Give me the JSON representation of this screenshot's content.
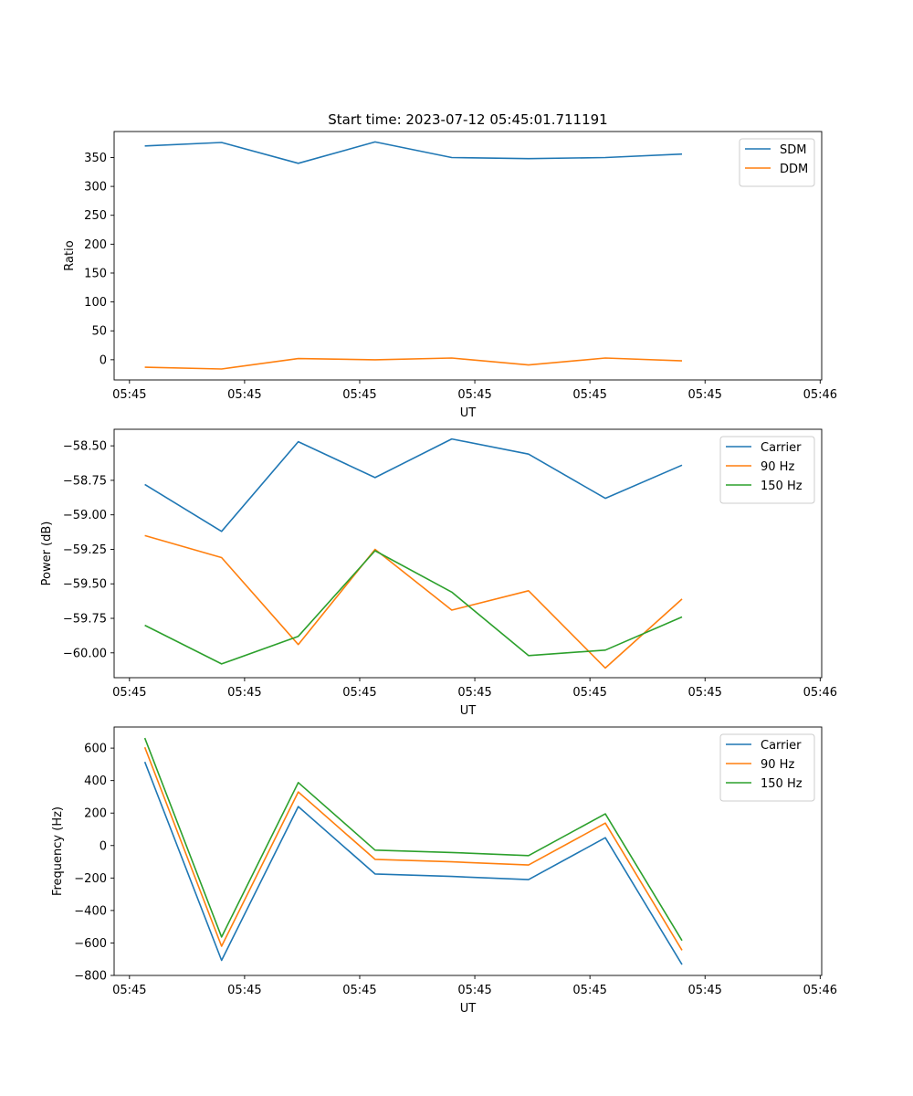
{
  "figure_title": "Start time: 2023-07-12 05:45:01.711191",
  "colors": {
    "blue": "#1f77b4",
    "orange": "#ff7f0e",
    "green": "#2ca02c"
  },
  "chart_data": [
    {
      "type": "line",
      "title": "Start time: 2023-07-12 05:45:01.711191",
      "xlabel": "UT",
      "ylabel": "Ratio",
      "x": [
        1,
        2,
        3,
        4,
        5,
        6,
        7,
        8
      ],
      "x_tick_positions": [
        0.8,
        2.3,
        3.8,
        5.3,
        6.8,
        8.3,
        9.8
      ],
      "x_tick_labels": [
        "05:45",
        "05:45",
        "05:45",
        "05:45",
        "05:45",
        "05:45",
        "05:46"
      ],
      "xlim": [
        0.6,
        9.82
      ],
      "ylim": [
        -35,
        395
      ],
      "y_ticks": [
        0,
        50,
        100,
        150,
        200,
        250,
        300,
        350
      ],
      "legend_position": "top-right",
      "series": [
        {
          "name": "SDM",
          "color": "#1f77b4",
          "values": [
            370,
            376,
            340,
            377,
            350,
            348,
            350,
            356
          ]
        },
        {
          "name": "DDM",
          "color": "#ff7f0e",
          "values": [
            -13,
            -16,
            2,
            0,
            3,
            -9,
            3,
            -2
          ]
        }
      ]
    },
    {
      "type": "line",
      "title": "",
      "xlabel": "UT",
      "ylabel": "Power (dB)",
      "x": [
        1,
        2,
        3,
        4,
        5,
        6,
        7,
        8
      ],
      "x_tick_positions": [
        0.8,
        2.3,
        3.8,
        5.3,
        6.8,
        8.3,
        9.8
      ],
      "x_tick_labels": [
        "05:45",
        "05:45",
        "05:45",
        "05:45",
        "05:45",
        "05:45",
        "05:46"
      ],
      "xlim": [
        0.6,
        9.82
      ],
      "ylim": [
        -60.18,
        -58.38
      ],
      "y_ticks": [
        -60.0,
        -59.75,
        -59.5,
        -59.25,
        -59.0,
        -58.75,
        -58.5
      ],
      "y_tick_labels": [
        "−60.00",
        "−59.75",
        "−59.50",
        "−59.25",
        "−59.00",
        "−58.75",
        "−58.50"
      ],
      "legend_position": "top-right",
      "series": [
        {
          "name": "Carrier",
          "color": "#1f77b4",
          "values": [
            -58.78,
            -59.12,
            -58.47,
            -58.73,
            -58.45,
            -58.56,
            -58.88,
            -58.64
          ]
        },
        {
          "name": "90 Hz",
          "color": "#ff7f0e",
          "values": [
            -59.15,
            -59.31,
            -59.94,
            -59.25,
            -59.69,
            -59.55,
            -60.11,
            -59.61
          ]
        },
        {
          "name": "150 Hz",
          "color": "#2ca02c",
          "values": [
            -59.8,
            -60.08,
            -59.88,
            -59.26,
            -59.56,
            -60.02,
            -59.98,
            -59.74
          ]
        }
      ]
    },
    {
      "type": "line",
      "title": "",
      "xlabel": "UT",
      "ylabel": "Frequency (Hz)",
      "x": [
        1,
        2,
        3,
        4,
        5,
        6,
        7,
        8
      ],
      "x_tick_positions": [
        0.8,
        2.3,
        3.8,
        5.3,
        6.8,
        8.3,
        9.8
      ],
      "x_tick_labels": [
        "05:45",
        "05:45",
        "05:45",
        "05:45",
        "05:45",
        "05:45",
        "05:46"
      ],
      "xlim": [
        0.6,
        9.82
      ],
      "ylim": [
        -800,
        730
      ],
      "y_ticks": [
        -800,
        -600,
        -400,
        -200,
        0,
        200,
        400,
        600
      ],
      "y_tick_labels": [
        "−800",
        "−600",
        "−400",
        "−200",
        "0",
        "200",
        "400",
        "600"
      ],
      "legend_position": "top-right",
      "series": [
        {
          "name": "Carrier",
          "color": "#1f77b4",
          "values": [
            515,
            -707,
            240,
            -175,
            -190,
            -210,
            48,
            -733
          ]
        },
        {
          "name": "90 Hz",
          "color": "#ff7f0e",
          "values": [
            605,
            -620,
            330,
            -85,
            -100,
            -120,
            138,
            -645
          ]
        },
        {
          "name": "150 Hz",
          "color": "#2ca02c",
          "values": [
            662,
            -563,
            388,
            -28,
            -43,
            -62,
            195,
            -585
          ]
        }
      ]
    }
  ]
}
